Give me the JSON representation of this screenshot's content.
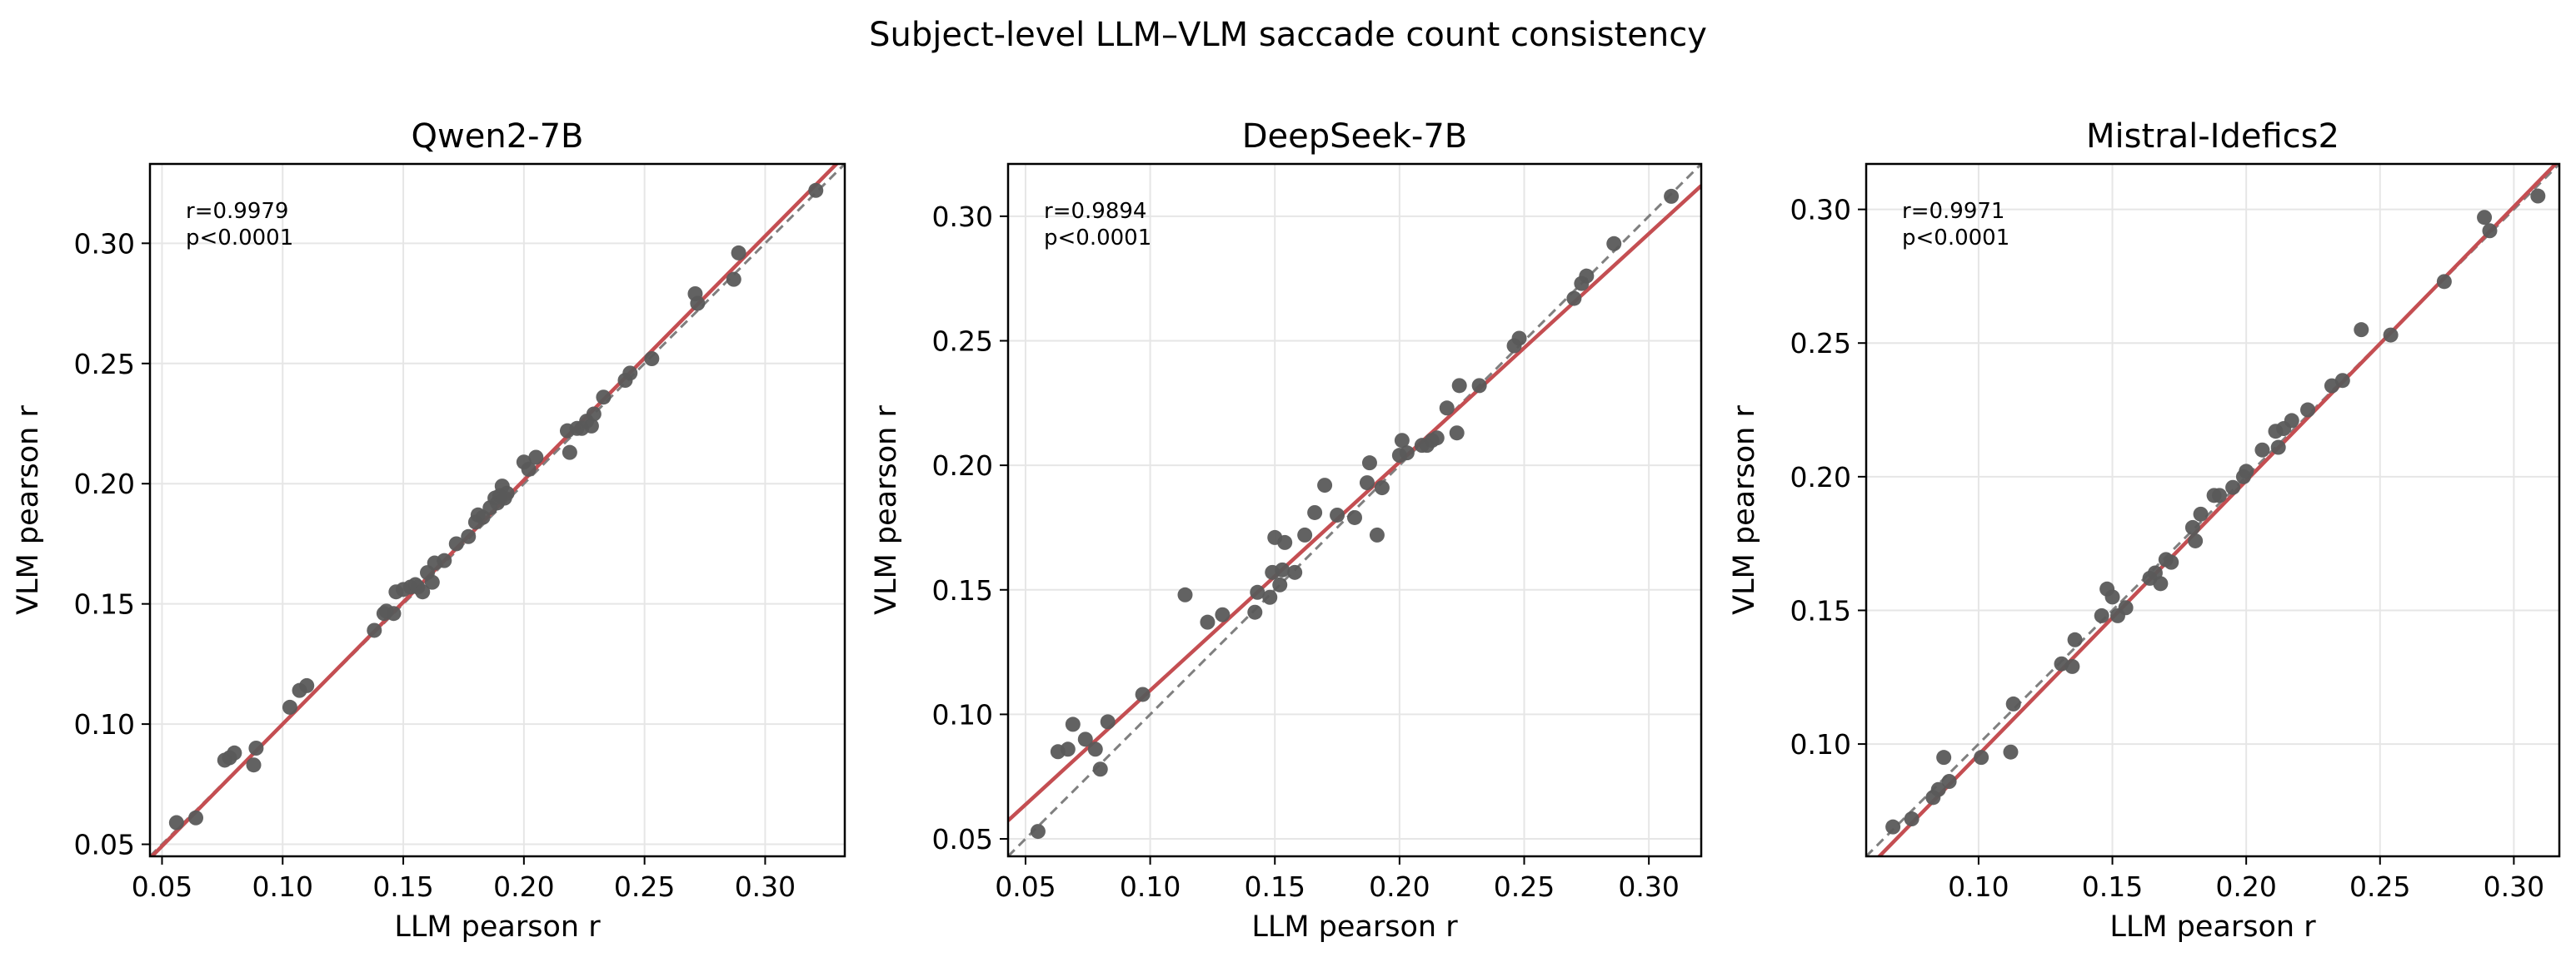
{
  "figure": {
    "title": "Subject-level LLM–VLM saccade count consistency"
  },
  "colors": {
    "points": "#5a5a5a",
    "fit_line": "#c44e52",
    "identity_line": "#7f7f7f",
    "grid": "#e6e6e6"
  },
  "chart_data": [
    {
      "type": "scatter",
      "title": "Qwen2-7B",
      "xlabel": "LLM pearson r",
      "ylabel": "VLM pearson r",
      "xlim": [
        0.045,
        0.333
      ],
      "ylim": [
        0.045,
        0.333
      ],
      "xticks": [
        0.05,
        0.1,
        0.15,
        0.2,
        0.25,
        0.3
      ],
      "yticks": [
        0.05,
        0.1,
        0.15,
        0.2,
        0.25,
        0.3
      ],
      "tick_labels": [
        "0.05",
        "0.10",
        "0.15",
        "0.20",
        "0.25",
        "0.30"
      ],
      "grid": true,
      "annotation": [
        "r=0.9979",
        "p<0.0001"
      ],
      "fit": {
        "slope": 1.015,
        "intercept": -0.0015
      },
      "x": [
        0.056,
        0.064,
        0.076,
        0.078,
        0.08,
        0.088,
        0.089,
        0.103,
        0.107,
        0.11,
        0.138,
        0.142,
        0.143,
        0.146,
        0.147,
        0.15,
        0.153,
        0.155,
        0.156,
        0.158,
        0.16,
        0.162,
        0.163,
        0.167,
        0.172,
        0.177,
        0.18,
        0.181,
        0.183,
        0.186,
        0.188,
        0.189,
        0.19,
        0.191,
        0.192,
        0.193,
        0.2,
        0.202,
        0.205,
        0.218,
        0.219,
        0.222,
        0.224,
        0.226,
        0.228,
        0.229,
        0.233,
        0.242,
        0.244,
        0.253,
        0.271,
        0.272,
        0.287,
        0.289,
        0.321
      ],
      "y": [
        0.059,
        0.061,
        0.085,
        0.086,
        0.088,
        0.083,
        0.09,
        0.107,
        0.114,
        0.116,
        0.139,
        0.146,
        0.147,
        0.146,
        0.155,
        0.156,
        0.157,
        0.158,
        0.157,
        0.155,
        0.163,
        0.159,
        0.167,
        0.168,
        0.175,
        0.178,
        0.184,
        0.187,
        0.186,
        0.19,
        0.194,
        0.192,
        0.195,
        0.199,
        0.194,
        0.196,
        0.209,
        0.206,
        0.211,
        0.222,
        0.213,
        0.223,
        0.223,
        0.226,
        0.224,
        0.229,
        0.236,
        0.243,
        0.246,
        0.252,
        0.279,
        0.275,
        0.285,
        0.296,
        0.322
      ]
    },
    {
      "type": "scatter",
      "title": "DeepSeek-7B",
      "xlabel": "LLM pearson r",
      "ylabel": "VLM pearson r",
      "xlim": [
        0.043,
        0.321
      ],
      "ylim": [
        0.043,
        0.321
      ],
      "xticks": [
        0.05,
        0.1,
        0.15,
        0.2,
        0.25,
        0.3
      ],
      "yticks": [
        0.05,
        0.1,
        0.15,
        0.2,
        0.25,
        0.3
      ],
      "tick_labels": [
        "0.05",
        "0.10",
        "0.15",
        "0.20",
        "0.25",
        "0.30"
      ],
      "grid": true,
      "annotation": [
        "r=0.9894",
        "p<0.0001"
      ],
      "fit": {
        "slope": 0.917,
        "intercept": 0.0179
      },
      "x": [
        0.055,
        0.063,
        0.067,
        0.069,
        0.074,
        0.078,
        0.08,
        0.083,
        0.097,
        0.114,
        0.123,
        0.129,
        0.142,
        0.143,
        0.148,
        0.149,
        0.15,
        0.152,
        0.153,
        0.154,
        0.158,
        0.162,
        0.166,
        0.17,
        0.175,
        0.182,
        0.187,
        0.188,
        0.191,
        0.193,
        0.2,
        0.201,
        0.203,
        0.209,
        0.211,
        0.213,
        0.215,
        0.219,
        0.223,
        0.224,
        0.232,
        0.246,
        0.248,
        0.27,
        0.273,
        0.275,
        0.286,
        0.309
      ],
      "y": [
        0.053,
        0.085,
        0.086,
        0.096,
        0.09,
        0.086,
        0.078,
        0.097,
        0.108,
        0.148,
        0.137,
        0.14,
        0.141,
        0.149,
        0.147,
        0.157,
        0.171,
        0.152,
        0.158,
        0.169,
        0.157,
        0.172,
        0.181,
        0.192,
        0.18,
        0.179,
        0.193,
        0.201,
        0.172,
        0.191,
        0.204,
        0.21,
        0.205,
        0.208,
        0.208,
        0.21,
        0.211,
        0.223,
        0.213,
        0.232,
        0.232,
        0.248,
        0.251,
        0.267,
        0.273,
        0.276,
        0.289,
        0.308
      ]
    },
    {
      "type": "scatter",
      "title": "Mistral-Idefics2",
      "xlabel": "LLM pearson r",
      "ylabel": "VLM pearson r",
      "xlim": [
        0.058,
        0.317
      ],
      "ylim": [
        0.058,
        0.317
      ],
      "xticks": [
        0.1,
        0.15,
        0.2,
        0.25,
        0.3
      ],
      "yticks": [
        0.1,
        0.15,
        0.2,
        0.25,
        0.3
      ],
      "tick_labels": [
        "0.10",
        "0.15",
        "0.20",
        "0.25",
        "0.30"
      ],
      "grid": true,
      "annotation": [
        "r=0.9971",
        "p<0.0001"
      ],
      "fit": {
        "slope": 1.025,
        "intercept": -0.0065
      },
      "x": [
        0.068,
        0.075,
        0.083,
        0.085,
        0.087,
        0.089,
        0.101,
        0.112,
        0.113,
        0.131,
        0.135,
        0.136,
        0.146,
        0.148,
        0.15,
        0.152,
        0.155,
        0.164,
        0.166,
        0.168,
        0.17,
        0.172,
        0.18,
        0.181,
        0.183,
        0.188,
        0.19,
        0.195,
        0.199,
        0.2,
        0.206,
        0.211,
        0.212,
        0.214,
        0.217,
        0.223,
        0.232,
        0.236,
        0.243,
        0.254,
        0.274,
        0.289,
        0.291,
        0.309
      ],
      "y": [
        0.069,
        0.072,
        0.08,
        0.083,
        0.095,
        0.086,
        0.095,
        0.097,
        0.115,
        0.13,
        0.129,
        0.139,
        0.148,
        0.158,
        0.155,
        0.148,
        0.151,
        0.162,
        0.164,
        0.16,
        0.169,
        0.168,
        0.181,
        0.176,
        0.186,
        0.193,
        0.193,
        0.196,
        0.2,
        0.202,
        0.21,
        0.217,
        0.211,
        0.218,
        0.221,
        0.225,
        0.234,
        0.236,
        0.255,
        0.253,
        0.273,
        0.297,
        0.292,
        0.305
      ]
    }
  ]
}
